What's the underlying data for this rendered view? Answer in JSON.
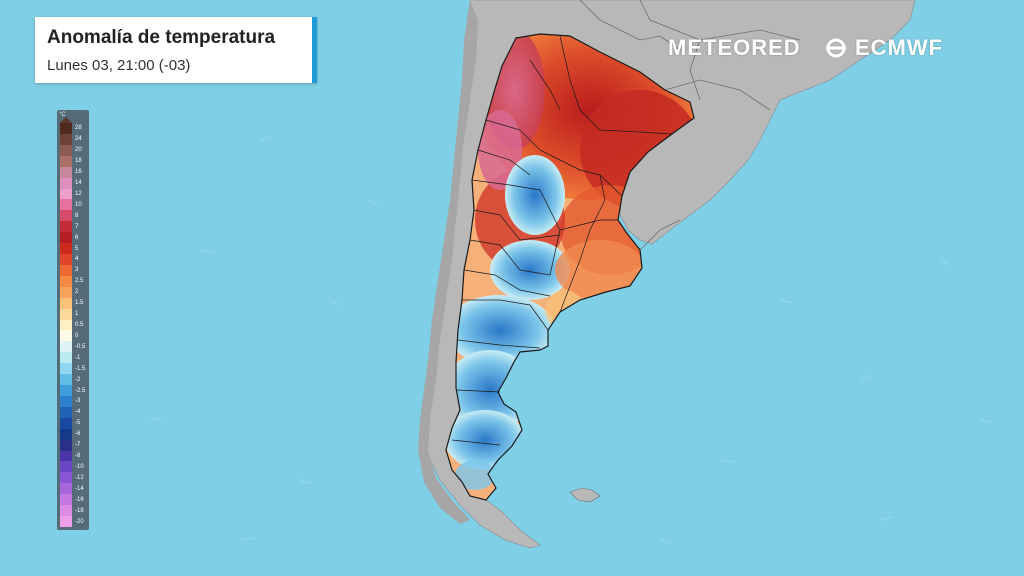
{
  "title": "Anomalía de temperatura",
  "subtitle": "Lunes 03, 21:00 (-03)",
  "brand": {
    "meteored": "METEORED",
    "ecmwf": "ECMWF"
  },
  "legend": {
    "unit": "°C",
    "levels": [
      {
        "label": "28",
        "color": "#4e2a1f"
      },
      {
        "label": "24",
        "color": "#6e4236"
      },
      {
        "label": "20",
        "color": "#8c5b51"
      },
      {
        "label": "18",
        "color": "#a87068"
      },
      {
        "label": "16",
        "color": "#c7879d"
      },
      {
        "label": "14",
        "color": "#de8fbd"
      },
      {
        "label": "12",
        "color": "#ee9fcb"
      },
      {
        "label": "10",
        "color": "#e8709c"
      },
      {
        "label": "8",
        "color": "#d64a6a"
      },
      {
        "label": "7",
        "color": "#c42a38"
      },
      {
        "label": "6",
        "color": "#b51e22"
      },
      {
        "label": "5",
        "color": "#cc2a1e"
      },
      {
        "label": "4",
        "color": "#e0442a"
      },
      {
        "label": "3",
        "color": "#ee6a33"
      },
      {
        "label": "2.5",
        "color": "#f58a45"
      },
      {
        "label": "2",
        "color": "#f8a45a"
      },
      {
        "label": "1.5",
        "color": "#fbc278"
      },
      {
        "label": "1",
        "color": "#fdda9a"
      },
      {
        "label": "0.5",
        "color": "#fff0c4"
      },
      {
        "label": "0",
        "color": "#fdfbe8"
      },
      {
        "label": "-0.5",
        "color": "#dff5f5"
      },
      {
        "label": "-1",
        "color": "#b8ecf1"
      },
      {
        "label": "-1.5",
        "color": "#8ed7ee"
      },
      {
        "label": "-2",
        "color": "#62bde6"
      },
      {
        "label": "-2.5",
        "color": "#3f9ddb"
      },
      {
        "label": "-3",
        "color": "#2b7fcc"
      },
      {
        "label": "-4",
        "color": "#1f62b6"
      },
      {
        "label": "-5",
        "color": "#1a4aa0"
      },
      {
        "label": "-6",
        "color": "#153a8a"
      },
      {
        "label": "-7",
        "color": "#2a2f88"
      },
      {
        "label": "-8",
        "color": "#4a35a8"
      },
      {
        "label": "-10",
        "color": "#6a45c4"
      },
      {
        "label": "-12",
        "color": "#8a55d4"
      },
      {
        "label": "-14",
        "color": "#a865dc"
      },
      {
        "label": "-16",
        "color": "#c478e2"
      },
      {
        "label": "-18",
        "color": "#da8ce6"
      },
      {
        "label": "-20",
        "color": "#ee9fec"
      }
    ]
  },
  "colors": {
    "ocean": "#7fcfe6",
    "land": "#b9b9b9",
    "accent": "#1e9bd7",
    "warm": "#d9402a",
    "cold": "#3f8fd8"
  }
}
